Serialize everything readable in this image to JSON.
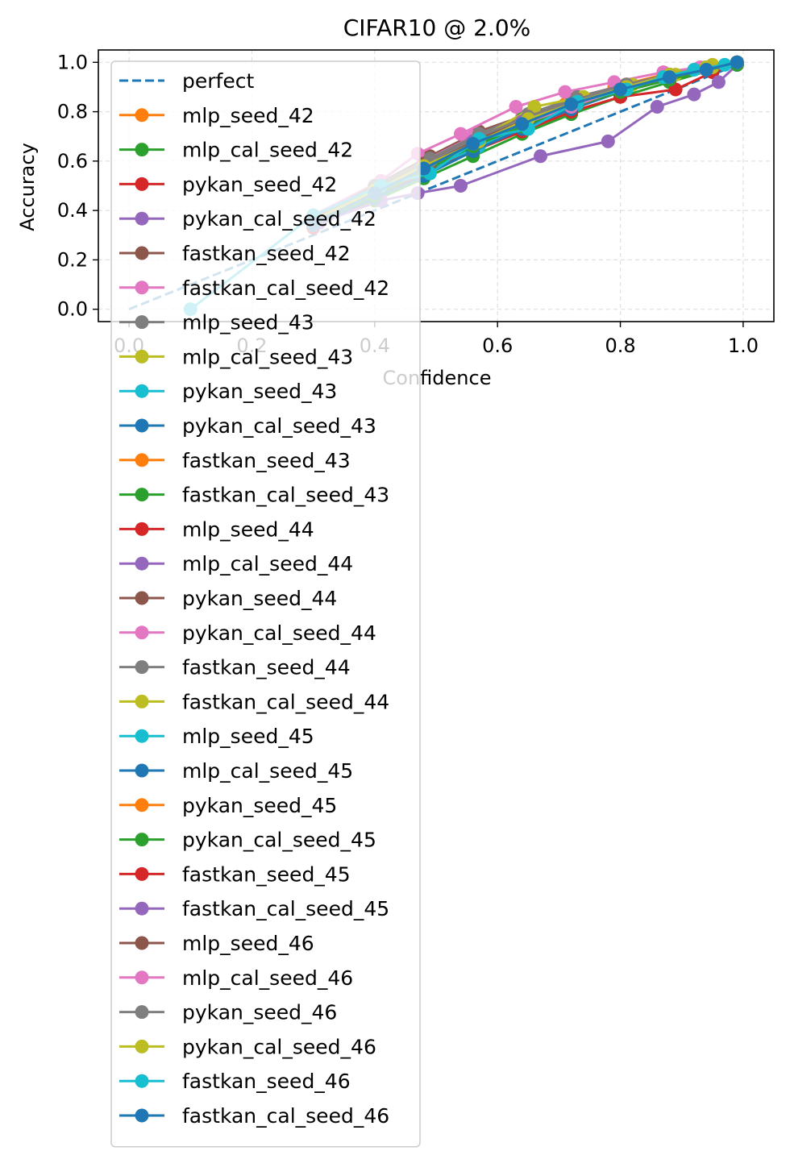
{
  "chart_data": {
    "type": "line",
    "title": "CIFAR10 @ 2.0%",
    "xlabel": "Confidence",
    "ylabel": "Accuracy",
    "xlim": [
      -0.05,
      1.05
    ],
    "ylim": [
      -0.05,
      1.05
    ],
    "xticks": [
      "0.0",
      "0.2",
      "0.4",
      "0.6",
      "0.8",
      "1.0"
    ],
    "yticks": [
      "0.0",
      "0.2",
      "0.4",
      "0.6",
      "0.8",
      "1.0"
    ],
    "grid": true,
    "legend_position": "upper-left",
    "reference_line": {
      "name": "perfect",
      "color": "#1f77b4",
      "style": "dashed",
      "x": [
        0,
        1
      ],
      "y": [
        0,
        1
      ]
    },
    "series": [
      {
        "name": "mlp_seed_42",
        "color": "#ff7f0e",
        "x": [
          0.3,
          0.4,
          0.48,
          0.56,
          0.63,
          0.71,
          0.79,
          0.87,
          0.94,
          0.99
        ],
        "y": [
          0.36,
          0.47,
          0.56,
          0.66,
          0.75,
          0.83,
          0.9,
          0.95,
          0.98,
          1.0
        ]
      },
      {
        "name": "mlp_cal_seed_42",
        "color": "#2ca02c",
        "x": [
          0.3,
          0.4,
          0.48,
          0.56,
          0.64,
          0.72,
          0.8,
          0.88,
          0.95,
          0.99
        ],
        "y": [
          0.34,
          0.44,
          0.53,
          0.62,
          0.71,
          0.79,
          0.86,
          0.92,
          0.97,
          0.99
        ]
      },
      {
        "name": "pykan_seed_42",
        "color": "#d62728",
        "x": [
          0.3,
          0.4,
          0.48,
          0.56,
          0.64,
          0.72,
          0.8,
          0.89,
          0.95,
          0.99
        ],
        "y": [
          0.33,
          0.45,
          0.55,
          0.64,
          0.72,
          0.8,
          0.86,
          0.89,
          0.96,
          0.99
        ]
      },
      {
        "name": "pykan_cal_seed_42",
        "color": "#9467bd",
        "x": [
          0.31,
          0.41,
          0.47,
          0.54,
          0.67,
          0.78,
          0.86,
          0.92,
          0.96,
          0.99
        ],
        "y": [
          0.35,
          0.44,
          0.47,
          0.5,
          0.62,
          0.68,
          0.82,
          0.87,
          0.92,
          0.99
        ]
      },
      {
        "name": "fastkan_seed_42",
        "color": "#8c564b",
        "x": [
          0.3,
          0.4,
          0.49,
          0.57,
          0.65,
          0.73,
          0.81,
          0.88,
          0.94,
          0.99
        ],
        "y": [
          0.38,
          0.5,
          0.62,
          0.72,
          0.79,
          0.86,
          0.91,
          0.95,
          0.98,
          1.0
        ]
      },
      {
        "name": "fastkan_cal_seed_42",
        "color": "#e377c2",
        "x": [
          0.3,
          0.4,
          0.48,
          0.56,
          0.64,
          0.72,
          0.8,
          0.88,
          0.94,
          0.99
        ],
        "y": [
          0.37,
          0.49,
          0.6,
          0.7,
          0.78,
          0.85,
          0.9,
          0.95,
          0.98,
          1.0
        ]
      },
      {
        "name": "mlp_seed_43",
        "color": "#7f7f7f",
        "x": [
          0.3,
          0.4,
          0.49,
          0.57,
          0.65,
          0.73,
          0.81,
          0.88,
          0.94,
          0.99
        ],
        "y": [
          0.37,
          0.49,
          0.6,
          0.7,
          0.78,
          0.85,
          0.9,
          0.95,
          0.98,
          1.0
        ]
      },
      {
        "name": "mlp_cal_seed_43",
        "color": "#bcbd22",
        "x": [
          0.3,
          0.4,
          0.48,
          0.57,
          0.65,
          0.73,
          0.81,
          0.88,
          0.95,
          0.99
        ],
        "y": [
          0.36,
          0.48,
          0.58,
          0.68,
          0.77,
          0.84,
          0.9,
          0.94,
          0.98,
          1.0
        ]
      },
      {
        "name": "pykan_seed_43",
        "color": "#17becf",
        "x": [
          0.3,
          0.4,
          0.48,
          0.57,
          0.65,
          0.73,
          0.81,
          0.88,
          0.94,
          0.99
        ],
        "y": [
          0.35,
          0.46,
          0.56,
          0.66,
          0.75,
          0.83,
          0.89,
          0.94,
          0.97,
          1.0
        ]
      },
      {
        "name": "pykan_cal_seed_43",
        "color": "#1f77b4",
        "x": [
          0.3,
          0.4,
          0.48,
          0.56,
          0.64,
          0.72,
          0.8,
          0.88,
          0.94,
          0.99
        ],
        "y": [
          0.34,
          0.45,
          0.54,
          0.64,
          0.73,
          0.81,
          0.88,
          0.93,
          0.97,
          0.99
        ]
      },
      {
        "name": "fastkan_seed_43",
        "color": "#ff7f0e",
        "x": [
          0.3,
          0.4,
          0.48,
          0.57,
          0.65,
          0.73,
          0.81,
          0.88,
          0.94,
          0.99
        ],
        "y": [
          0.37,
          0.49,
          0.6,
          0.7,
          0.78,
          0.85,
          0.91,
          0.95,
          0.98,
          1.0
        ]
      },
      {
        "name": "fastkan_cal_seed_43",
        "color": "#2ca02c",
        "x": [
          0.3,
          0.4,
          0.48,
          0.56,
          0.64,
          0.72,
          0.8,
          0.88,
          0.94,
          0.99
        ],
        "y": [
          0.36,
          0.48,
          0.58,
          0.68,
          0.77,
          0.84,
          0.9,
          0.94,
          0.97,
          1.0
        ]
      },
      {
        "name": "mlp_seed_44",
        "color": "#d62728",
        "x": [
          0.3,
          0.4,
          0.48,
          0.57,
          0.65,
          0.73,
          0.81,
          0.88,
          0.94,
          0.99
        ],
        "y": [
          0.36,
          0.48,
          0.59,
          0.69,
          0.77,
          0.84,
          0.9,
          0.95,
          0.98,
          1.0
        ]
      },
      {
        "name": "mlp_cal_seed_44",
        "color": "#9467bd",
        "x": [
          0.3,
          0.4,
          0.48,
          0.56,
          0.64,
          0.72,
          0.8,
          0.88,
          0.94,
          0.99
        ],
        "y": [
          0.35,
          0.46,
          0.56,
          0.66,
          0.74,
          0.82,
          0.88,
          0.93,
          0.97,
          0.99
        ]
      },
      {
        "name": "pykan_seed_44",
        "color": "#8c564b",
        "x": [
          0.3,
          0.4,
          0.49,
          0.57,
          0.65,
          0.73,
          0.81,
          0.88,
          0.94,
          0.99
        ],
        "y": [
          0.36,
          0.48,
          0.58,
          0.68,
          0.77,
          0.84,
          0.9,
          0.95,
          0.98,
          1.0
        ]
      },
      {
        "name": "pykan_cal_seed_44",
        "color": "#e377c2",
        "x": [
          0.3,
          0.41,
          0.47,
          0.54,
          0.63,
          0.71,
          0.79,
          0.87,
          0.93,
          0.99
        ],
        "y": [
          0.38,
          0.52,
          0.63,
          0.71,
          0.82,
          0.88,
          0.92,
          0.96,
          0.98,
          1.0
        ]
      },
      {
        "name": "fastkan_seed_44",
        "color": "#7f7f7f",
        "x": [
          0.3,
          0.4,
          0.49,
          0.57,
          0.65,
          0.73,
          0.81,
          0.88,
          0.94,
          0.99
        ],
        "y": [
          0.37,
          0.5,
          0.61,
          0.71,
          0.79,
          0.86,
          0.91,
          0.95,
          0.98,
          1.0
        ]
      },
      {
        "name": "fastkan_cal_seed_44",
        "color": "#bcbd22",
        "x": [
          0.3,
          0.4,
          0.48,
          0.57,
          0.66,
          0.74,
          0.82,
          0.89,
          0.95,
          0.99
        ],
        "y": [
          0.37,
          0.49,
          0.59,
          0.69,
          0.82,
          0.86,
          0.91,
          0.95,
          0.99,
          1.0
        ]
      },
      {
        "name": "mlp_seed_45",
        "color": "#17becf",
        "x": [
          0.3,
          0.4,
          0.48,
          0.57,
          0.65,
          0.73,
          0.81,
          0.88,
          0.94,
          0.99
        ],
        "y": [
          0.36,
          0.48,
          0.58,
          0.68,
          0.77,
          0.84,
          0.9,
          0.95,
          0.98,
          1.0
        ]
      },
      {
        "name": "mlp_cal_seed_45",
        "color": "#1f77b4",
        "x": [
          0.3,
          0.4,
          0.48,
          0.56,
          0.64,
          0.72,
          0.8,
          0.88,
          0.94,
          0.99
        ],
        "y": [
          0.35,
          0.46,
          0.56,
          0.66,
          0.75,
          0.82,
          0.89,
          0.94,
          0.97,
          1.0
        ]
      },
      {
        "name": "pykan_seed_45",
        "color": "#ff7f0e",
        "x": [
          0.3,
          0.4,
          0.48,
          0.57,
          0.65,
          0.73,
          0.81,
          0.88,
          0.94,
          0.99
        ],
        "y": [
          0.36,
          0.48,
          0.58,
          0.68,
          0.77,
          0.84,
          0.9,
          0.95,
          0.98,
          1.0
        ]
      },
      {
        "name": "pykan_cal_seed_45",
        "color": "#2ca02c",
        "x": [
          0.3,
          0.4,
          0.48,
          0.56,
          0.64,
          0.72,
          0.8,
          0.88,
          0.94,
          0.99
        ],
        "y": [
          0.35,
          0.46,
          0.56,
          0.66,
          0.74,
          0.82,
          0.88,
          0.93,
          0.97,
          0.99
        ]
      },
      {
        "name": "fastkan_seed_45",
        "color": "#d62728",
        "x": [
          0.3,
          0.4,
          0.49,
          0.57,
          0.65,
          0.73,
          0.81,
          0.88,
          0.94,
          0.99
        ],
        "y": [
          0.37,
          0.49,
          0.6,
          0.7,
          0.78,
          0.85,
          0.91,
          0.95,
          0.98,
          1.0
        ]
      },
      {
        "name": "fastkan_cal_seed_45",
        "color": "#9467bd",
        "x": [
          0.3,
          0.4,
          0.48,
          0.56,
          0.64,
          0.72,
          0.8,
          0.88,
          0.94,
          0.99
        ],
        "y": [
          0.36,
          0.48,
          0.58,
          0.68,
          0.76,
          0.83,
          0.89,
          0.94,
          0.97,
          1.0
        ]
      },
      {
        "name": "mlp_seed_46",
        "color": "#8c564b",
        "x": [
          0.3,
          0.4,
          0.48,
          0.57,
          0.65,
          0.73,
          0.81,
          0.88,
          0.94,
          0.99
        ],
        "y": [
          0.36,
          0.48,
          0.59,
          0.69,
          0.77,
          0.84,
          0.9,
          0.95,
          0.98,
          1.0
        ]
      },
      {
        "name": "mlp_cal_seed_46",
        "color": "#e377c2",
        "x": [
          0.3,
          0.4,
          0.48,
          0.56,
          0.64,
          0.72,
          0.8,
          0.88,
          0.94,
          0.99
        ],
        "y": [
          0.35,
          0.47,
          0.57,
          0.67,
          0.75,
          0.82,
          0.89,
          0.94,
          0.97,
          1.0
        ]
      },
      {
        "name": "pykan_seed_46",
        "color": "#7f7f7f",
        "x": [
          0.3,
          0.4,
          0.49,
          0.57,
          0.65,
          0.73,
          0.81,
          0.88,
          0.94,
          0.99
        ],
        "y": [
          0.37,
          0.49,
          0.6,
          0.7,
          0.78,
          0.85,
          0.91,
          0.95,
          0.98,
          1.0
        ]
      },
      {
        "name": "pykan_cal_seed_46",
        "color": "#bcbd22",
        "x": [
          0.3,
          0.4,
          0.48,
          0.57,
          0.65,
          0.73,
          0.81,
          0.88,
          0.94,
          0.99
        ],
        "y": [
          0.36,
          0.48,
          0.58,
          0.68,
          0.77,
          0.84,
          0.9,
          0.95,
          0.98,
          1.0
        ]
      },
      {
        "name": "fastkan_seed_46",
        "color": "#17becf",
        "x": [
          0.1,
          0.3,
          0.41,
          0.49,
          0.57,
          0.65,
          0.73,
          0.81,
          0.87,
          0.92,
          0.97
        ],
        "y": [
          0.0,
          0.38,
          0.5,
          0.55,
          0.69,
          0.73,
          0.84,
          0.89,
          0.94,
          0.97,
          0.99
        ]
      },
      {
        "name": "fastkan_cal_seed_46",
        "color": "#1f77b4",
        "x": [
          0.3,
          0.4,
          0.48,
          0.56,
          0.64,
          0.72,
          0.8,
          0.88,
          0.94,
          0.99
        ],
        "y": [
          0.35,
          0.47,
          0.57,
          0.67,
          0.75,
          0.83,
          0.89,
          0.94,
          0.97,
          1.0
        ]
      }
    ]
  }
}
